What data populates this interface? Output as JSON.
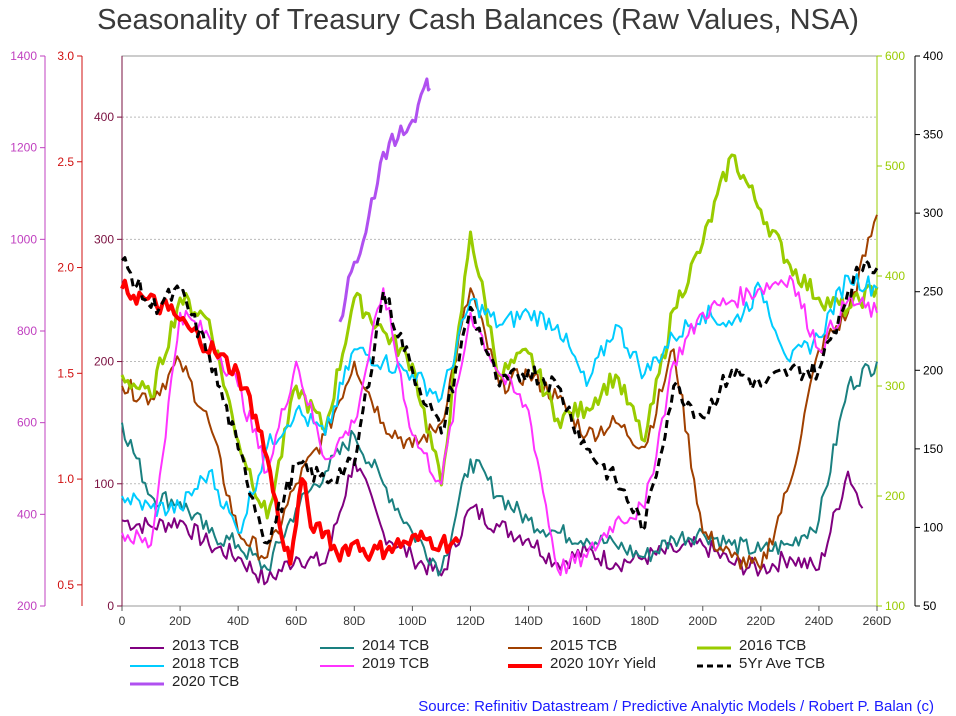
{
  "chart_data": {
    "type": "line",
    "title": "Seasonality of Treasury Cash Balances (Raw Values, NSA)",
    "x_ticks": [
      "0",
      "20D",
      "40D",
      "60D",
      "80D",
      "100D",
      "120D",
      "140D",
      "160D",
      "180D",
      "200D",
      "220D",
      "240D",
      "260D"
    ],
    "xlim": [
      0,
      260
    ],
    "grid": true,
    "legend_position": "bottom",
    "axes": [
      {
        "id": "a_purple",
        "side": "left",
        "color": "#c040c0",
        "ylim": [
          200,
          1400
        ],
        "ticks": [
          "200",
          "400",
          "600",
          "800",
          "1000",
          "1200",
          "1400"
        ],
        "tick_values": [
          200,
          400,
          600,
          800,
          1000,
          1200,
          1400
        ]
      },
      {
        "id": "a_red",
        "side": "left",
        "color": "#d01010",
        "ylim": [
          0.4,
          3.0
        ],
        "ticks": [
          "0.5",
          "1.0",
          "1.5",
          "2.0",
          "2.5",
          "3.0"
        ],
        "tick_values": [
          0.5,
          1.0,
          1.5,
          2.0,
          2.5,
          3.0
        ]
      },
      {
        "id": "a_main",
        "side": "left",
        "color": "#7a1040",
        "ylim": [
          0,
          450
        ],
        "ticks": [
          "0",
          "100",
          "200",
          "300",
          "400"
        ],
        "tick_values": [
          0,
          100,
          200,
          300,
          400
        ]
      },
      {
        "id": "a_green",
        "side": "right",
        "color": "#99cc00",
        "ylim": [
          100,
          600
        ],
        "ticks": [
          "100",
          "200",
          "300",
          "400",
          "500",
          "600"
        ],
        "tick_values": [
          100,
          200,
          300,
          400,
          500,
          600
        ]
      },
      {
        "id": "a_black",
        "side": "right",
        "color": "#000000",
        "ylim": [
          50,
          400
        ],
        "ticks": [
          "50",
          "100",
          "150",
          "200",
          "250",
          "300",
          "350",
          "400"
        ],
        "tick_values": [
          50,
          100,
          150,
          200,
          250,
          300,
          350,
          400
        ]
      }
    ],
    "series": [
      {
        "name": "2013 TCB",
        "color": "#800080",
        "width": 2,
        "axis": "a_main",
        "x": [
          0,
          10,
          20,
          30,
          40,
          50,
          60,
          70,
          80,
          90,
          100,
          110,
          120,
          130,
          140,
          150,
          160,
          170,
          180,
          190,
          200,
          210,
          220,
          230,
          240,
          250,
          255
        ],
        "values": [
          70,
          65,
          70,
          50,
          40,
          20,
          40,
          35,
          120,
          60,
          40,
          25,
          80,
          65,
          55,
          35,
          45,
          35,
          40,
          45,
          50,
          35,
          30,
          40,
          30,
          110,
          80
        ]
      },
      {
        "name": "2014 TCB",
        "color": "#1a8080",
        "width": 2,
        "axis": "a_main",
        "x": [
          0,
          10,
          20,
          30,
          40,
          50,
          60,
          70,
          80,
          90,
          100,
          110,
          120,
          130,
          140,
          150,
          160,
          170,
          180,
          190,
          200,
          210,
          220,
          230,
          240,
          250,
          260
        ],
        "values": [
          150,
          90,
          85,
          60,
          50,
          30,
          80,
          110,
          140,
          100,
          60,
          30,
          120,
          90,
          70,
          60,
          55,
          50,
          40,
          55,
          60,
          50,
          45,
          50,
          70,
          180,
          200
        ]
      },
      {
        "name": "2015 TCB",
        "color": "#a04000",
        "width": 2,
        "axis": "a_main",
        "x": [
          0,
          10,
          20,
          30,
          40,
          50,
          60,
          70,
          80,
          90,
          100,
          110,
          120,
          130,
          140,
          150,
          160,
          170,
          180,
          190,
          200,
          210,
          220,
          230,
          240,
          250,
          260
        ],
        "values": [
          180,
          170,
          200,
          150,
          60,
          40,
          100,
          140,
          200,
          150,
          130,
          150,
          260,
          180,
          190,
          170,
          140,
          150,
          130,
          210,
          60,
          40,
          30,
          100,
          210,
          240,
          320
        ]
      },
      {
        "name": "2016 TCB",
        "color": "#99cc00",
        "width": 3,
        "axis": "a_green",
        "x": [
          0,
          10,
          20,
          30,
          40,
          50,
          60,
          70,
          80,
          90,
          100,
          110,
          120,
          130,
          140,
          150,
          160,
          170,
          180,
          190,
          200,
          210,
          220,
          230,
          240,
          250,
          260
        ],
        "values": [
          310,
          290,
          380,
          360,
          250,
          180,
          300,
          260,
          380,
          350,
          320,
          210,
          440,
          310,
          330,
          270,
          280,
          310,
          250,
          370,
          430,
          510,
          460,
          410,
          380,
          370,
          390
        ]
      },
      {
        "name": "2018 TCB",
        "color": "#00ccff",
        "width": 2,
        "axis": "a_main",
        "x": [
          0,
          10,
          20,
          30,
          40,
          50,
          60,
          70,
          80,
          90,
          100,
          110,
          120,
          130,
          140,
          150,
          160,
          170,
          180,
          190,
          200,
          210,
          220,
          230,
          240,
          250,
          260
        ],
        "values": [
          90,
          80,
          80,
          110,
          60,
          130,
          160,
          140,
          210,
          200,
          190,
          170,
          250,
          230,
          240,
          230,
          180,
          230,
          190,
          220,
          240,
          230,
          260,
          200,
          220,
          270,
          260
        ]
      },
      {
        "name": "2019 TCB",
        "color": "#ff33ff",
        "width": 2,
        "axis": "a_main",
        "x": [
          0,
          10,
          20,
          30,
          40,
          50,
          60,
          70,
          80,
          90,
          100,
          110,
          120,
          130,
          140,
          150,
          160,
          170,
          180,
          190,
          200,
          210,
          220,
          230,
          240,
          250,
          260
        ],
        "values": [
          60,
          50,
          240,
          220,
          180,
          110,
          200,
          120,
          150,
          260,
          140,
          100,
          240,
          190,
          160,
          30,
          40,
          70,
          80,
          200,
          240,
          250,
          260,
          270,
          210,
          250,
          240
        ]
      },
      {
        "name": "2020 10Yr Yield",
        "color": "#ff0000",
        "width": 4,
        "axis": "a_red",
        "x": [
          0,
          8,
          16,
          24,
          32,
          40,
          46,
          50,
          54,
          58,
          62,
          66,
          70,
          74,
          80,
          86,
          92,
          98,
          104,
          110,
          116
        ],
        "values": [
          1.9,
          1.85,
          1.8,
          1.7,
          1.6,
          1.5,
          1.3,
          1.1,
          0.8,
          0.6,
          1.0,
          0.75,
          0.75,
          0.65,
          0.7,
          0.65,
          0.68,
          0.7,
          0.72,
          0.7,
          0.7
        ]
      },
      {
        "name": "5Yr Ave TCB",
        "color": "#000000",
        "width": 3,
        "axis": "a_black",
        "dashed": true,
        "x": [
          0,
          10,
          20,
          30,
          40,
          50,
          60,
          70,
          80,
          90,
          100,
          110,
          120,
          130,
          140,
          150,
          160,
          170,
          180,
          190,
          200,
          210,
          220,
          230,
          240,
          250,
          256,
          260
        ],
        "values": [
          270,
          240,
          250,
          210,
          150,
          90,
          140,
          130,
          140,
          250,
          200,
          160,
          240,
          190,
          200,
          190,
          150,
          130,
          100,
          190,
          170,
          200,
          190,
          200,
          200,
          250,
          270,
          265
        ]
      },
      {
        "name": "2020 TCB",
        "color": "#b050f0",
        "width": 3,
        "axis": "a_purple",
        "x": [
          75,
          80,
          85,
          90,
          95,
          100,
          105,
          106
        ],
        "values": [
          820,
          950,
          1050,
          1190,
          1220,
          1260,
          1350,
          1330
        ]
      }
    ]
  },
  "legend": [
    {
      "label": "2013 TCB",
      "color": "#800080",
      "width": 2,
      "dashed": false
    },
    {
      "label": "2014 TCB",
      "color": "#1a8080",
      "width": 2,
      "dashed": false
    },
    {
      "label": "2015 TCB",
      "color": "#a04000",
      "width": 2,
      "dashed": false
    },
    {
      "label": "2016 TCB",
      "color": "#99cc00",
      "width": 3,
      "dashed": false
    },
    {
      "label": "2018 TCB",
      "color": "#00ccff",
      "width": 2,
      "dashed": false
    },
    {
      "label": "2019 TCB",
      "color": "#ff33ff",
      "width": 2,
      "dashed": false
    },
    {
      "label": "2020 10Yr Yield",
      "color": "#ff0000",
      "width": 4,
      "dashed": false
    },
    {
      "label": "5Yr Ave TCB",
      "color": "#000000",
      "width": 3,
      "dashed": true
    },
    {
      "label": "2020 TCB",
      "color": "#b050f0",
      "width": 3,
      "dashed": false
    }
  ],
  "source": "Source: Refinitiv Datastream / Predictive Analytic Models / Robert P. Balan (c)"
}
